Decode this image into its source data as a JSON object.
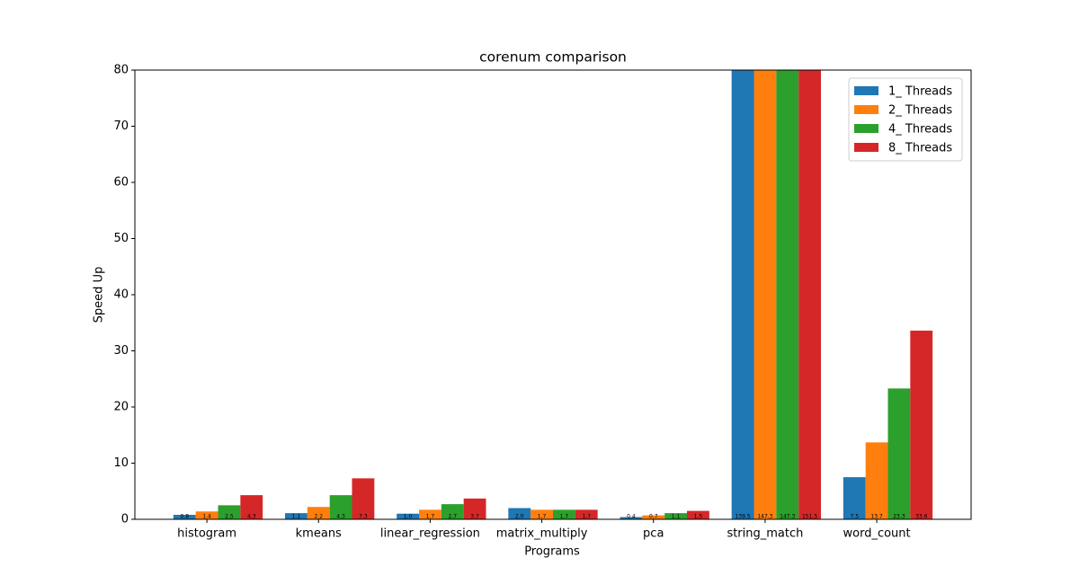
{
  "chart_data": {
    "type": "bar",
    "title": "corenum comparison",
    "x_label": "Programs",
    "y_label": "Speed Up",
    "categories": [
      "histogram",
      "kmeans",
      "linear_regression",
      "matrix_multiply",
      "pca",
      "string_match",
      "word_count"
    ],
    "series": [
      {
        "name": "1_ Threads",
        "color": "#1f77b4",
        "values": [
          0.8,
          1.1,
          1.0,
          2.0,
          0.4,
          139.5,
          7.5
        ],
        "value_labels": [
          "0.8",
          "1.1",
          "1.0",
          "2.0",
          "0.4",
          "139.5",
          "7.5"
        ]
      },
      {
        "name": "2_ Threads",
        "color": "#ff7f0e",
        "values": [
          1.4,
          2.2,
          1.7,
          1.7,
          0.7,
          147.3,
          13.7
        ],
        "value_labels": [
          "1.4",
          "2.2",
          "1.7",
          "1.7",
          "0.7",
          "147.3",
          "13.7"
        ]
      },
      {
        "name": "4_ Threads",
        "color": "#2ca02c",
        "values": [
          2.5,
          4.3,
          2.7,
          1.7,
          1.1,
          147.3,
          23.3
        ],
        "value_labels": [
          "2.5",
          "4.3",
          "2.7",
          "1.7",
          "1.1",
          "147.3",
          "23.3"
        ]
      },
      {
        "name": "8_ Threads",
        "color": "#d62728",
        "values": [
          4.3,
          7.3,
          3.7,
          1.7,
          1.5,
          151.5,
          33.6
        ],
        "value_labels": [
          "4.3",
          "7.3",
          "3.7",
          "1.7",
          "1.5",
          "151.5",
          "33.6"
        ]
      }
    ],
    "ylim": [
      0,
      80
    ],
    "yticks": [
      0,
      10,
      20,
      30,
      40,
      50,
      60,
      70,
      80
    ],
    "grid": false,
    "legend": "upper right"
  }
}
